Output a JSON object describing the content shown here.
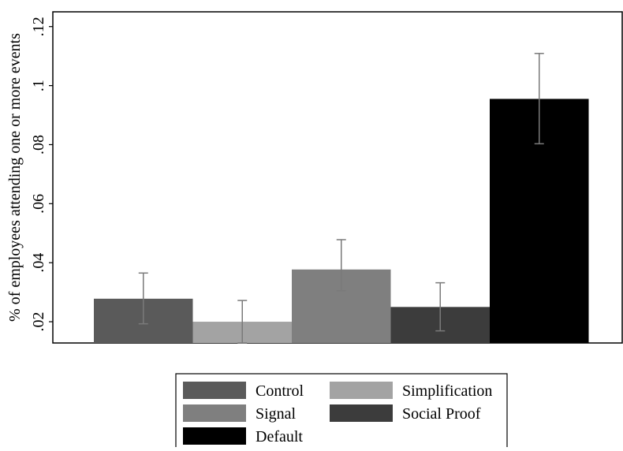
{
  "chart_data": {
    "type": "bar",
    "title": "",
    "xlabel": "",
    "ylabel": "% of employees attending one or more events",
    "ylim": [
      0.0128,
      0.125
    ],
    "yticks": [
      0.02,
      0.04,
      0.06,
      0.08,
      0.1,
      0.12
    ],
    "ytick_labels": [
      ".02",
      ".04",
      ".06",
      ".08",
      ".1",
      ".12"
    ],
    "grid": false,
    "legend_position": "bottom",
    "categories": [
      "Control",
      "Simplification",
      "Signal",
      "Social Proof",
      "Default"
    ],
    "values": [
      0.0278,
      0.02,
      0.0377,
      0.025,
      0.0955
    ],
    "error_low": [
      0.0193,
      0.0128,
      0.0305,
      0.0169,
      0.0803
    ],
    "error_high": [
      0.0365,
      0.0272,
      0.0478,
      0.0332,
      0.1109
    ],
    "colors": [
      "#5a5a5a",
      "#a3a3a3",
      "#7f7f7f",
      "#3c3c3c",
      "#000000"
    ],
    "error_bar_color": "#7a7a7a",
    "legend": [
      {
        "label": "Control",
        "color": "#5a5a5a"
      },
      {
        "label": "Simplification",
        "color": "#a3a3a3"
      },
      {
        "label": "Signal",
        "color": "#7f7f7f"
      },
      {
        "label": "Social Proof",
        "color": "#3c3c3c"
      },
      {
        "label": "Default",
        "color": "#000000"
      }
    ]
  }
}
